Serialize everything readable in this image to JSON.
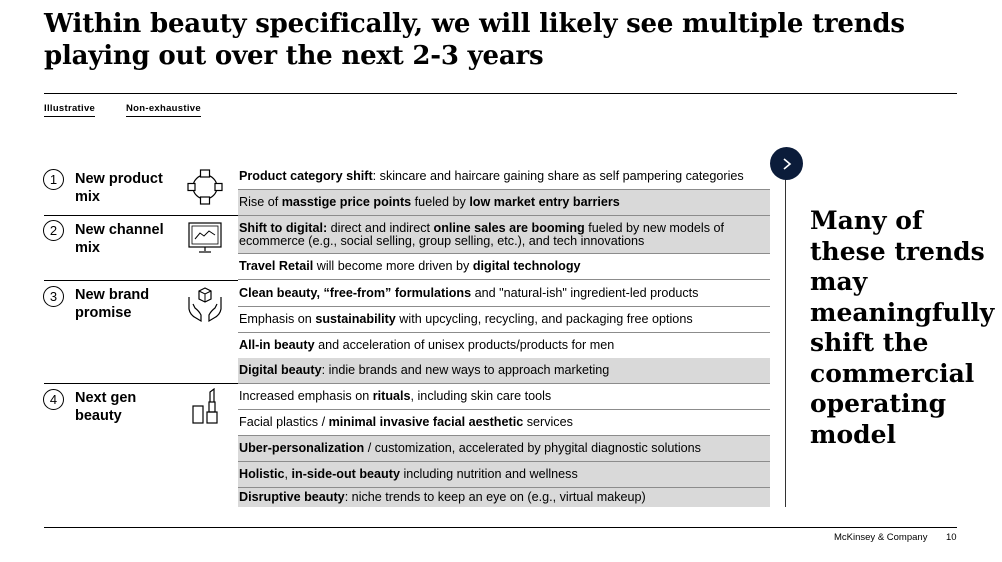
{
  "title": "Within beauty specifically, we will likely see multiple trends playing out over the next 2-3 years",
  "tags": {
    "illustrative": "Illustrative",
    "non_exhaustive": "Non-exhaustive"
  },
  "categories": [
    {
      "number": "1",
      "label": "New product mix",
      "icon": "product-mix-icon"
    },
    {
      "number": "2",
      "label": "New channel mix",
      "icon": "monitor-chart-icon"
    },
    {
      "number": "3",
      "label": "New brand promise",
      "icon": "hands-box-icon"
    },
    {
      "number": "4",
      "label": "Next gen beauty",
      "icon": "lipstick-icon"
    }
  ],
  "trends": [
    {
      "shaded": false,
      "parts": [
        {
          "b": true,
          "t": "Product category shift"
        },
        {
          "b": false,
          "t": ": skincare and haircare gaining share as self pampering categories"
        }
      ]
    },
    {
      "shaded": true,
      "parts": [
        {
          "b": false,
          "t": "Rise of "
        },
        {
          "b": true,
          "t": "masstige price points"
        },
        {
          "b": false,
          "t": " fueled by "
        },
        {
          "b": true,
          "t": "low market entry barriers"
        }
      ]
    },
    {
      "shaded": true,
      "parts": [
        {
          "b": true,
          "t": "Shift to digital:"
        },
        {
          "b": false,
          "t": " direct and indirect "
        },
        {
          "b": true,
          "t": "online sales are booming"
        },
        {
          "b": false,
          "t": " fueled by new models of ecommerce (e.g., social selling, group selling, etc.), and tech innovations"
        }
      ]
    },
    {
      "shaded": false,
      "parts": [
        {
          "b": true,
          "t": "Travel Retail"
        },
        {
          "b": false,
          "t": " will become more driven by "
        },
        {
          "b": true,
          "t": "digital technology"
        }
      ]
    },
    {
      "shaded": false,
      "parts": [
        {
          "b": true,
          "t": "Clean beauty, “free-from” formulations"
        },
        {
          "b": false,
          "t": " and \"natural-ish\" ingredient-led products"
        }
      ]
    },
    {
      "shaded": false,
      "parts": [
        {
          "b": false,
          "t": "Emphasis on "
        },
        {
          "b": true,
          "t": "sustainability"
        },
        {
          "b": false,
          "t": " with upcycling, recycling, and packaging free options"
        }
      ]
    },
    {
      "shaded": false,
      "parts": [
        {
          "b": true,
          "t": "All-in beauty"
        },
        {
          "b": false,
          "t": " and acceleration of unisex products/products for men"
        }
      ]
    },
    {
      "shaded": true,
      "parts": [
        {
          "b": true,
          "t": "Digital beauty"
        },
        {
          "b": false,
          "t": ": indie brands and new ways to approach marketing"
        }
      ]
    },
    {
      "shaded": false,
      "parts": [
        {
          "b": false,
          "t": "Increased emphasis on "
        },
        {
          "b": true,
          "t": "rituals"
        },
        {
          "b": false,
          "t": ", including skin care tools"
        }
      ]
    },
    {
      "shaded": false,
      "parts": [
        {
          "b": false,
          "t": "Facial plastics / "
        },
        {
          "b": true,
          "t": "minimal invasive facial aesthetic"
        },
        {
          "b": false,
          "t": " services"
        }
      ]
    },
    {
      "shaded": true,
      "parts": [
        {
          "b": true,
          "t": "Uber-personalization"
        },
        {
          "b": false,
          "t": " / customization, accelerated by phygital diagnostic solutions"
        }
      ]
    },
    {
      "shaded": true,
      "parts": [
        {
          "b": true,
          "t": "Holistic"
        },
        {
          "b": false,
          "t": ", "
        },
        {
          "b": true,
          "t": "in-side-out beauty"
        },
        {
          "b": false,
          "t": " including nutrition and wellness"
        }
      ]
    },
    {
      "shaded": true,
      "parts": [
        {
          "b": true,
          "t": "Disruptive beauty"
        },
        {
          "b": false,
          "t": ": niche trends to keep an eye on (e.g., virtual makeup)"
        }
      ]
    }
  ],
  "side_text": "Many of these trends may meaningfully shift the commercial operating model",
  "chevron_icon": "chevron-right-icon",
  "footer": {
    "company": "McKinsey & Company",
    "page": "10"
  },
  "colors": {
    "shade": "#d9d9d9",
    "navy": "#0b1c3a"
  }
}
